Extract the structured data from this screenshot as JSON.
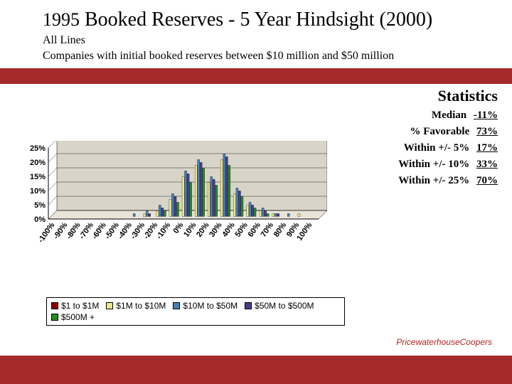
{
  "header": {
    "year": "1995",
    "title_rest": " Booked Reserves - 5 Year Hindsight (2000)",
    "sub1": "All Lines",
    "sub2": "Companies with initial booked reserves between $10 million and $50 million"
  },
  "stats": {
    "title": "Statistics",
    "rows": [
      {
        "label": "Median",
        "value": "-11%"
      },
      {
        "label": "% Favorable",
        "value": "73%"
      },
      {
        "label": "Within +/- 5%",
        "value": "17%"
      },
      {
        "label": "Within +/- 10%",
        "value": "33%"
      },
      {
        "label": "Within +/- 25%",
        "value": "70%"
      }
    ]
  },
  "chart": {
    "type": "bar",
    "ylim": [
      0,
      25
    ],
    "ytick_step": 5,
    "ytick_labels": [
      "0%",
      "5%",
      "10%",
      "15%",
      "20%",
      "25%"
    ],
    "x_labels": [
      "-100%",
      "-90%",
      "-80%",
      "-70%",
      "-60%",
      "-50%",
      "-40%",
      "-30%",
      "-20%",
      "-10%",
      "0%",
      "10%",
      "20%",
      "30%",
      "40%",
      "50%",
      "60%",
      "70%",
      "80%",
      "90%",
      "100%"
    ],
    "series": [
      {
        "name": "$1 to $1M",
        "color": "#8b0000",
        "values": [
          0,
          0,
          0,
          0,
          0,
          0,
          0,
          0,
          0,
          0,
          0,
          0,
          0,
          0,
          0,
          0,
          0,
          0,
          0,
          0,
          0
        ]
      },
      {
        "name": "$1M to $10M",
        "color": "#f0e68c",
        "values": [
          0,
          0,
          0,
          0,
          0,
          0,
          0,
          1,
          2,
          6,
          14,
          18,
          12,
          20,
          8,
          4,
          2,
          1,
          0,
          1,
          0
        ]
      },
      {
        "name": "$10M to $50M",
        "color": "#4682b4",
        "values": [
          0,
          0,
          0,
          0,
          0,
          0,
          1,
          2,
          4,
          8,
          16,
          20,
          14,
          22,
          10,
          5,
          3,
          1,
          1,
          0,
          0
        ]
      },
      {
        "name": "$50M to $500M",
        "color": "#483d8b",
        "values": [
          0,
          0,
          0,
          0,
          0,
          0,
          0,
          1,
          3,
          7,
          15,
          19,
          13,
          21,
          9,
          4,
          2,
          1,
          0,
          0,
          0
        ]
      },
      {
        "name": "$500M +",
        "color": "#228b22",
        "values": [
          0,
          0,
          0,
          0,
          0,
          0,
          0,
          0,
          2,
          5,
          12,
          17,
          11,
          18,
          7,
          3,
          1,
          0,
          0,
          0,
          0
        ]
      }
    ],
    "grid_color": "#000000",
    "bg_color_floor": "#e8e4d8",
    "bg_color_wall": "#d8d4c8",
    "label_fontsize": 11,
    "label_color": "#000000",
    "label_rotation": -45
  },
  "legend": {
    "items": [
      {
        "label": "$1 to $1M",
        "color": "#8b0000"
      },
      {
        "label": "$1M to $10M",
        "color": "#f0e68c"
      },
      {
        "label": "$10M to $50M",
        "color": "#4682b4"
      },
      {
        "label": "$50M to $500M",
        "color": "#483d8b"
      },
      {
        "label": "$500M +",
        "color": "#228b22"
      }
    ]
  },
  "footer": {
    "text": "PricewaterhouseCoopers"
  },
  "colors": {
    "slide_bg": "#a52a2a",
    "text": "#000000",
    "footer_text": "#b22222"
  }
}
